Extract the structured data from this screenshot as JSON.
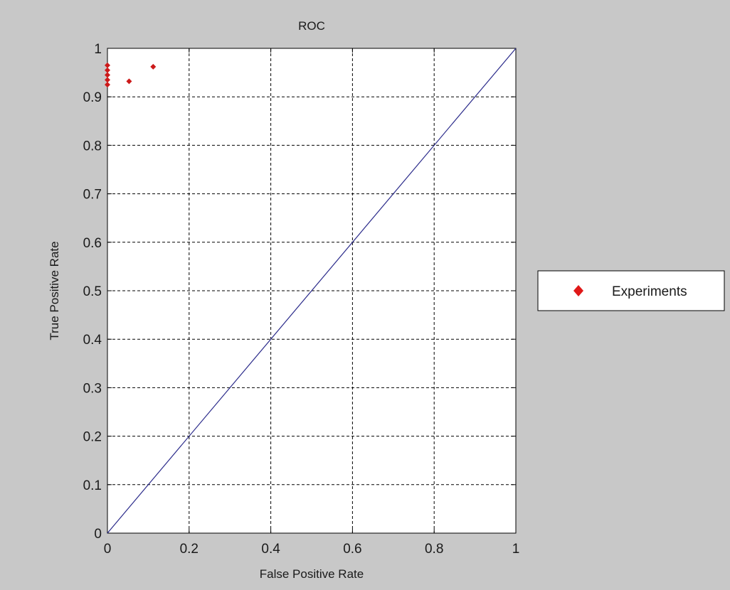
{
  "chart_data": {
    "type": "scatter",
    "title": "ROC",
    "xlabel": "False Positive Rate",
    "ylabel": "True Positive Rate",
    "xlim": [
      0,
      1
    ],
    "ylim": [
      0,
      1
    ],
    "xticks": [
      "0",
      "0.2",
      "0.4",
      "0.6",
      "0.8",
      "1"
    ],
    "yticks": [
      "0",
      "0.1",
      "0.2",
      "0.3",
      "0.4",
      "0.5",
      "0.6",
      "0.7",
      "0.8",
      "0.9",
      "1"
    ],
    "grid": true,
    "legend": {
      "position": "right-outside",
      "entries": [
        "Experiments"
      ]
    },
    "series": [
      {
        "name": "Experiments",
        "color": "#cc1a1a",
        "marker": "diamond",
        "points": [
          {
            "x": 0.0,
            "y": 0.965
          },
          {
            "x": 0.0,
            "y": 0.955
          },
          {
            "x": 0.0,
            "y": 0.945
          },
          {
            "x": 0.0,
            "y": 0.935
          },
          {
            "x": 0.0,
            "y": 0.925
          },
          {
            "x": 0.053,
            "y": 0.932
          },
          {
            "x": 0.112,
            "y": 0.962
          }
        ]
      }
    ],
    "reference_line": {
      "x": [
        0,
        1
      ],
      "y": [
        0,
        1
      ],
      "color": "#2a2a8a"
    }
  }
}
